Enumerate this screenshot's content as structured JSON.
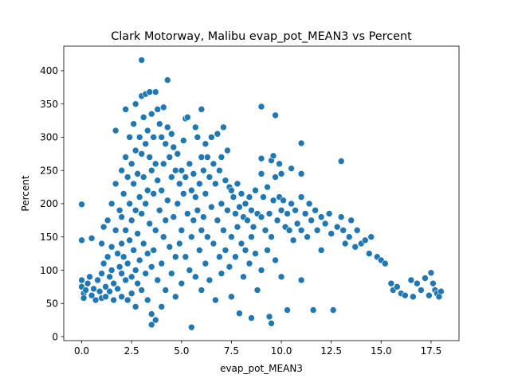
{
  "chart_data": {
    "type": "scatter",
    "title": "Clark Motorway, Malibu evap_pot_MEAN3 vs Percent",
    "xlabel": "evap_pot_MEAN3",
    "ylabel": "Percent",
    "xlim": [
      -0.9,
      18.9
    ],
    "ylim": [
      -6,
      437
    ],
    "xticks": [
      0.0,
      2.5,
      5.0,
      7.5,
      10.0,
      12.5,
      15.0,
      17.5
    ],
    "xtick_labels": [
      "0.0",
      "2.5",
      "5.0",
      "7.5",
      "10.0",
      "12.5",
      "15.0",
      "17.5"
    ],
    "yticks": [
      0,
      50,
      100,
      150,
      200,
      250,
      300,
      350,
      400
    ],
    "ytick_labels": [
      "0",
      "50",
      "100",
      "150",
      "200",
      "250",
      "300",
      "350",
      "400"
    ],
    "grid": false,
    "marker_color": "#1f77b4",
    "marker_edge_color": "#ffffff",
    "points": [
      [
        0.0,
        199
      ],
      [
        0.0,
        145
      ],
      [
        0.0,
        85
      ],
      [
        0.0,
        75
      ],
      [
        0.1,
        65
      ],
      [
        0.1,
        58
      ],
      [
        0.2,
        70
      ],
      [
        0.3,
        80
      ],
      [
        0.4,
        90
      ],
      [
        0.5,
        148
      ],
      [
        0.5,
        62
      ],
      [
        0.6,
        72
      ],
      [
        0.7,
        55
      ],
      [
        0.8,
        85
      ],
      [
        0.9,
        68
      ],
      [
        1.0,
        140
      ],
      [
        1.0,
        95
      ],
      [
        1.0,
        58
      ],
      [
        1.1,
        165
      ],
      [
        1.1,
        110
      ],
      [
        1.2,
        75
      ],
      [
        1.2,
        60
      ],
      [
        1.3,
        175
      ],
      [
        1.3,
        120
      ],
      [
        1.4,
        90
      ],
      [
        1.4,
        68
      ],
      [
        1.5,
        200
      ],
      [
        1.5,
        135
      ],
      [
        1.5,
        100
      ],
      [
        1.6,
        80
      ],
      [
        1.6,
        55
      ],
      [
        1.7,
        310
      ],
      [
        1.7,
        230
      ],
      [
        1.7,
        160
      ],
      [
        1.8,
        125
      ],
      [
        1.8,
        72
      ],
      [
        1.9,
        190
      ],
      [
        1.9,
        105
      ],
      [
        2.0,
        250
      ],
      [
        2.0,
        180
      ],
      [
        2.0,
        140
      ],
      [
        2.0,
        95
      ],
      [
        2.0,
        60
      ],
      [
        2.1,
        215
      ],
      [
        2.1,
        120
      ],
      [
        2.2,
        342
      ],
      [
        2.2,
        270
      ],
      [
        2.2,
        160
      ],
      [
        2.2,
        85
      ],
      [
        2.3,
        240
      ],
      [
        2.3,
        110
      ],
      [
        2.3,
        55
      ],
      [
        2.4,
        300
      ],
      [
        2.4,
        200
      ],
      [
        2.4,
        145
      ],
      [
        2.5,
        260
      ],
      [
        2.5,
        175
      ],
      [
        2.5,
        90
      ],
      [
        2.5,
        65
      ],
      [
        2.6,
        320
      ],
      [
        2.6,
        230
      ],
      [
        2.6,
        130
      ],
      [
        2.7,
        350
      ],
      [
        2.7,
        280
      ],
      [
        2.7,
        190
      ],
      [
        2.7,
        100
      ],
      [
        2.7,
        45
      ],
      [
        2.8,
        245
      ],
      [
        2.8,
        155
      ],
      [
        2.8,
        80
      ],
      [
        2.9,
        300
      ],
      [
        2.9,
        210
      ],
      [
        2.9,
        115
      ],
      [
        3.0,
        416
      ],
      [
        3.0,
        362
      ],
      [
        3.0,
        275
      ],
      [
        3.0,
        185
      ],
      [
        3.0,
        70
      ],
      [
        3.1,
        330
      ],
      [
        3.1,
        240
      ],
      [
        3.1,
        140
      ],
      [
        3.2,
        365
      ],
      [
        3.2,
        290
      ],
      [
        3.2,
        200
      ],
      [
        3.2,
        95
      ],
      [
        3.3,
        310
      ],
      [
        3.3,
        220
      ],
      [
        3.3,
        125
      ],
      [
        3.3,
        55
      ],
      [
        3.4,
        368
      ],
      [
        3.4,
        270
      ],
      [
        3.4,
        170
      ],
      [
        3.5,
        335
      ],
      [
        3.5,
        250
      ],
      [
        3.5,
        105
      ],
      [
        3.5,
        34
      ],
      [
        3.5,
        18
      ],
      [
        3.6,
        300
      ],
      [
        3.6,
        215
      ],
      [
        3.6,
        130
      ],
      [
        3.7,
        368
      ],
      [
        3.7,
        260
      ],
      [
        3.7,
        160
      ],
      [
        3.7,
        25
      ],
      [
        3.8,
        342
      ],
      [
        3.8,
        235
      ],
      [
        3.8,
        85
      ],
      [
        3.9,
        320
      ],
      [
        3.9,
        190
      ],
      [
        4.0,
        300
      ],
      [
        4.0,
        220
      ],
      [
        4.0,
        110
      ],
      [
        4.0,
        45
      ],
      [
        4.1,
        345
      ],
      [
        4.1,
        260
      ],
      [
        4.1,
        150
      ],
      [
        4.2,
        290
      ],
      [
        4.2,
        175
      ],
      [
        4.2,
        70
      ],
      [
        4.3,
        386
      ],
      [
        4.3,
        315
      ],
      [
        4.3,
        205
      ],
      [
        4.4,
        270
      ],
      [
        4.4,
        135
      ],
      [
        4.5,
        305
      ],
      [
        4.5,
        240
      ],
      [
        4.5,
        95
      ],
      [
        4.6,
        285
      ],
      [
        4.6,
        180
      ],
      [
        4.7,
        250
      ],
      [
        4.7,
        120
      ],
      [
        4.7,
        60
      ],
      [
        4.8,
        275
      ],
      [
        4.8,
        200
      ],
      [
        4.9,
        230
      ],
      [
        4.9,
        140
      ],
      [
        5.0,
        250
      ],
      [
        5.0,
        160
      ],
      [
        5.0,
        80
      ],
      [
        5.1,
        295
      ],
      [
        5.1,
        215
      ],
      [
        5.2,
        328
      ],
      [
        5.2,
        240
      ],
      [
        5.2,
        120
      ],
      [
        5.3,
        330
      ],
      [
        5.3,
        185
      ],
      [
        5.4,
        260
      ],
      [
        5.4,
        100
      ],
      [
        5.5,
        14
      ],
      [
        5.5,
        220
      ],
      [
        5.5,
        150
      ],
      [
        5.6,
        245
      ],
      [
        5.6,
        175
      ],
      [
        5.7,
        315
      ],
      [
        5.7,
        210
      ],
      [
        5.7,
        90
      ],
      [
        5.8,
        300
      ],
      [
        5.8,
        190
      ],
      [
        5.9,
        230
      ],
      [
        5.9,
        130
      ],
      [
        6.0,
        342
      ],
      [
        6.0,
        270
      ],
      [
        6.0,
        160
      ],
      [
        6.0,
        70
      ],
      [
        6.1,
        250
      ],
      [
        6.1,
        180
      ],
      [
        6.2,
        290
      ],
      [
        6.2,
        215
      ],
      [
        6.2,
        110
      ],
      [
        6.3,
        270
      ],
      [
        6.3,
        150
      ],
      [
        6.4,
        240
      ],
      [
        6.4,
        85
      ],
      [
        6.5,
        300
      ],
      [
        6.5,
        195
      ],
      [
        6.6,
        260
      ],
      [
        6.6,
        140
      ],
      [
        6.7,
        230
      ],
      [
        6.7,
        55
      ],
      [
        6.8,
        305
      ],
      [
        6.8,
        175
      ],
      [
        6.9,
        250
      ],
      [
        6.9,
        120
      ],
      [
        7.0,
        270
      ],
      [
        7.0,
        200
      ],
      [
        7.0,
        95
      ],
      [
        7.1,
        315
      ],
      [
        7.1,
        160
      ],
      [
        7.2,
        235
      ],
      [
        7.2,
        130
      ],
      [
        7.3,
        280
      ],
      [
        7.3,
        190
      ],
      [
        7.4,
        225
      ],
      [
        7.4,
        105
      ],
      [
        7.5,
        220
      ],
      [
        7.5,
        150
      ],
      [
        7.5,
        60
      ],
      [
        7.6,
        210
      ],
      [
        7.7,
        185
      ],
      [
        7.7,
        120
      ],
      [
        7.8,
        230
      ],
      [
        7.8,
        165
      ],
      [
        7.9,
        35
      ],
      [
        7.9,
        195
      ],
      [
        8.0,
        215
      ],
      [
        8.0,
        140
      ],
      [
        8.1,
        180
      ],
      [
        8.1,
        90
      ],
      [
        8.2,
        200
      ],
      [
        8.2,
        130
      ],
      [
        8.3,
        175
      ],
      [
        8.4,
        210
      ],
      [
        8.4,
        110
      ],
      [
        8.5,
        28
      ],
      [
        8.5,
        190
      ],
      [
        8.5,
        150
      ],
      [
        8.6,
        165
      ],
      [
        8.7,
        220
      ],
      [
        8.7,
        125
      ],
      [
        8.8,
        185
      ],
      [
        8.8,
        70
      ],
      [
        9.0,
        346
      ],
      [
        9.0,
        268
      ],
      [
        9.0,
        245
      ],
      [
        9.0,
        180
      ],
      [
        9.0,
        100
      ],
      [
        9.1,
        210
      ],
      [
        9.2,
        160
      ],
      [
        9.3,
        225
      ],
      [
        9.3,
        130
      ],
      [
        9.4,
        30
      ],
      [
        9.4,
        185
      ],
      [
        9.5,
        20
      ],
      [
        9.5,
        265
      ],
      [
        9.5,
        150
      ],
      [
        9.6,
        272
      ],
      [
        9.6,
        205
      ],
      [
        9.7,
        333
      ],
      [
        9.7,
        240
      ],
      [
        9.7,
        115
      ],
      [
        9.8,
        175
      ],
      [
        9.9,
        260
      ],
      [
        9.9,
        210
      ],
      [
        10.0,
        245
      ],
      [
        10.0,
        190
      ],
      [
        10.0,
        90
      ],
      [
        10.1,
        205
      ],
      [
        10.2,
        165
      ],
      [
        10.3,
        185
      ],
      [
        10.3,
        40
      ],
      [
        10.4,
        160
      ],
      [
        10.5,
        253
      ],
      [
        10.5,
        200
      ],
      [
        10.6,
        145
      ],
      [
        10.7,
        190
      ],
      [
        10.8,
        170
      ],
      [
        11.0,
        291
      ],
      [
        11.0,
        245
      ],
      [
        11.0,
        210
      ],
      [
        11.0,
        160
      ],
      [
        11.0,
        85
      ],
      [
        11.2,
        185
      ],
      [
        11.3,
        150
      ],
      [
        11.4,
        200
      ],
      [
        11.5,
        175
      ],
      [
        11.6,
        40
      ],
      [
        11.7,
        190
      ],
      [
        11.8,
        160
      ],
      [
        12.0,
        180
      ],
      [
        12.0,
        130
      ],
      [
        12.2,
        170
      ],
      [
        12.4,
        185
      ],
      [
        12.5,
        155
      ],
      [
        12.6,
        40
      ],
      [
        12.8,
        165
      ],
      [
        13.0,
        264
      ],
      [
        13.0,
        180
      ],
      [
        13.1,
        160
      ],
      [
        13.2,
        140
      ],
      [
        13.4,
        150
      ],
      [
        13.5,
        175
      ],
      [
        13.7,
        135
      ],
      [
        13.8,
        160
      ],
      [
        14.0,
        140
      ],
      [
        14.2,
        145
      ],
      [
        14.4,
        125
      ],
      [
        14.5,
        150
      ],
      [
        14.8,
        120
      ],
      [
        15.0,
        115
      ],
      [
        15.2,
        110
      ],
      [
        15.5,
        80
      ],
      [
        15.6,
        70
      ],
      [
        15.8,
        75
      ],
      [
        16.0,
        65
      ],
      [
        16.2,
        62
      ],
      [
        16.5,
        85
      ],
      [
        16.6,
        60
      ],
      [
        16.8,
        80
      ],
      [
        17.0,
        70
      ],
      [
        17.2,
        88
      ],
      [
        17.4,
        62
      ],
      [
        17.5,
        96
      ],
      [
        17.6,
        80
      ],
      [
        17.7,
        70
      ],
      [
        17.8,
        65
      ],
      [
        18.0,
        68
      ],
      [
        17.9,
        60
      ]
    ]
  }
}
